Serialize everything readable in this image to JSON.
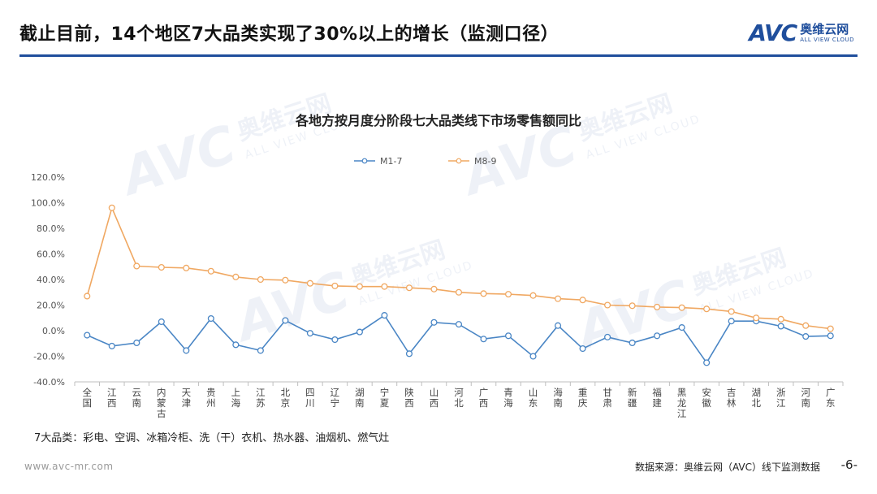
{
  "header": {
    "title": "截止目前，14个地区7大品类实现了30%以上的增长（监测口径）",
    "logo_main": "AVC",
    "logo_cn": "奥维云网",
    "logo_en": "ALL VIEW CLOUD"
  },
  "footer": {
    "website": "www.avc-mr.com",
    "source": "数据来源：奥维云网（AVC）线下监测数据",
    "page": "-6-"
  },
  "note": "7大品类：彩电、空调、冰箱冷柜、洗（干）衣机、热水器、油烟机、燃气灶",
  "colors": {
    "accent": "#1f4e9c",
    "series_m17": "#4a86c5",
    "series_m89": "#f0a862"
  },
  "chart_data": {
    "type": "line",
    "title": "各地方按月度分阶段七大品类线下市场零售额同比",
    "categories": [
      "全国",
      "江西",
      "云南",
      "内蒙古",
      "天津",
      "贵州",
      "上海",
      "江苏",
      "北京",
      "四川",
      "辽宁",
      "湖南",
      "宁夏",
      "陕西",
      "山西",
      "河北",
      "广西",
      "青海",
      "山东",
      "海南",
      "重庆",
      "甘肃",
      "新疆",
      "福建",
      "黑龙江",
      "安徽",
      "吉林",
      "湖北",
      "浙江",
      "河南",
      "广东"
    ],
    "series": [
      {
        "name": "M1-7",
        "values": [
          -3.5,
          -12,
          -9.5,
          7,
          -15.5,
          9.5,
          -11,
          -15.5,
          8,
          -2,
          -7,
          -1,
          12,
          -18,
          6.5,
          5,
          -6.5,
          -4,
          -20,
          4,
          -14,
          -5,
          -9.5,
          -4,
          2.5,
          -25,
          7.5,
          7.5,
          3.5,
          -4.5,
          -4
        ]
      },
      {
        "name": "M8-9",
        "values": [
          27,
          96,
          50.5,
          49.5,
          49,
          46.5,
          42,
          40,
          39.5,
          37,
          35,
          34.5,
          34.5,
          33.5,
          32.5,
          30,
          29,
          28.5,
          27.5,
          25,
          24,
          20,
          19.5,
          18.5,
          18,
          17,
          15,
          10,
          9,
          4,
          1.5
        ]
      }
    ],
    "ylim": [
      -40,
      120
    ],
    "yticks": [
      "120.0%",
      "100.0%",
      "80.0%",
      "60.0%",
      "40.0%",
      "20.0%",
      "0.0%",
      "-20.0%",
      "-40.0%"
    ],
    "legend_position": "top-center",
    "grid": false
  }
}
